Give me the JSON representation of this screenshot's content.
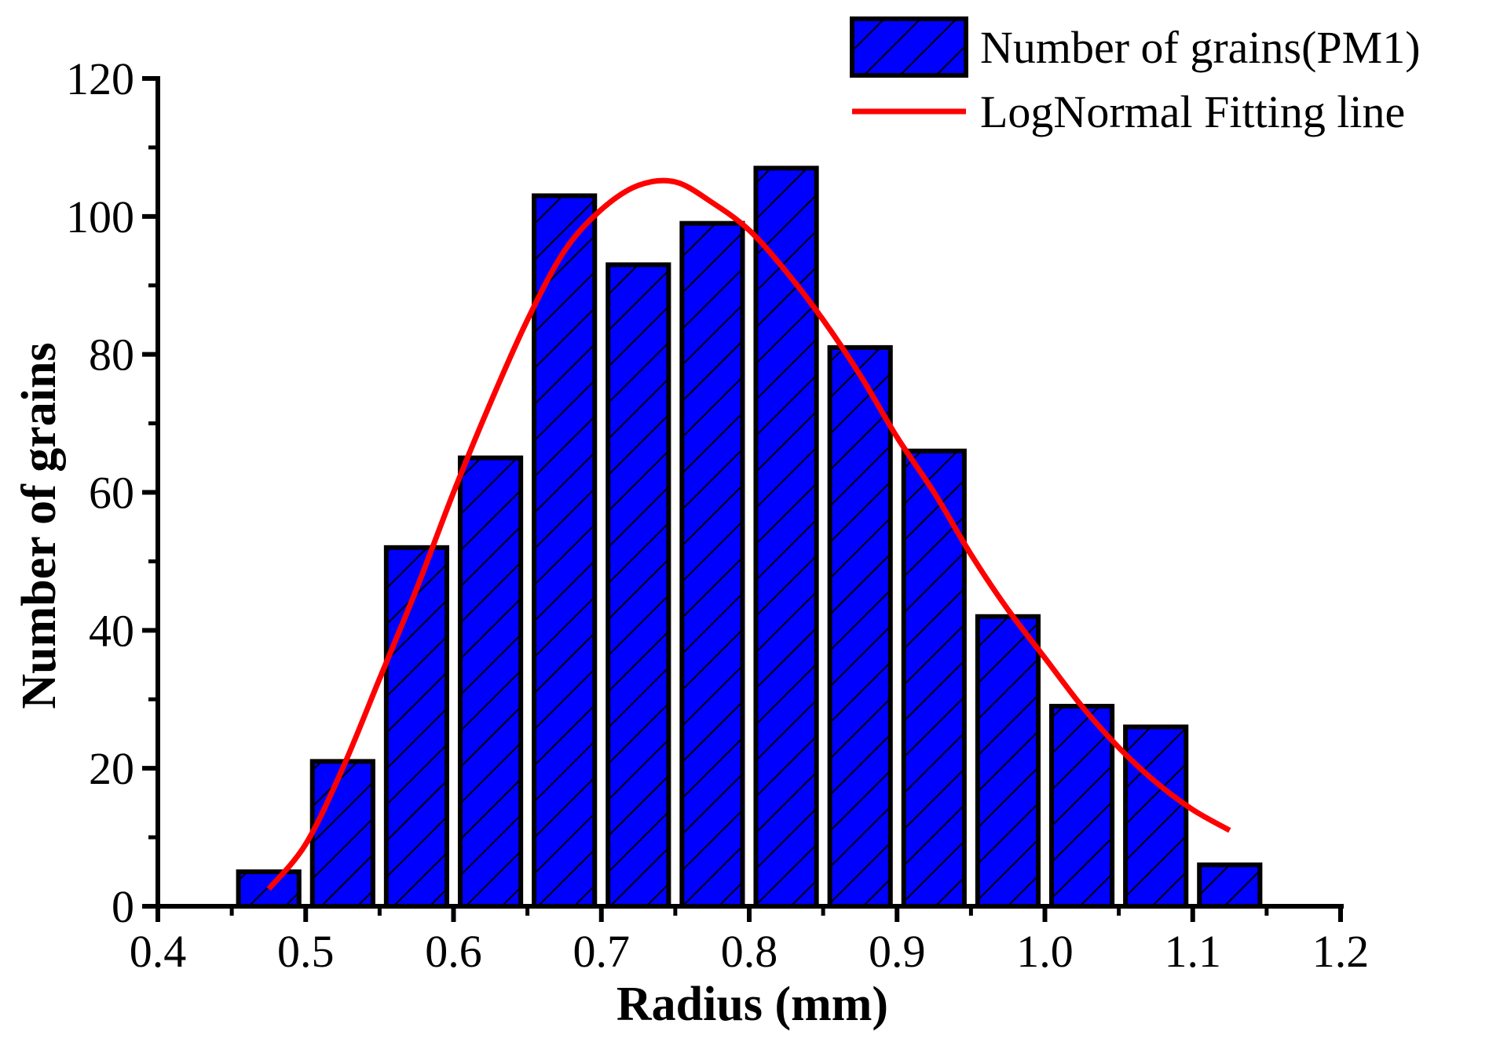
{
  "chart_data": {
    "type": "bar",
    "xlabel": "Radius (mm)",
    "ylabel": "Number of grains",
    "xlim": [
      0.4,
      1.2
    ],
    "ylim": [
      0,
      120
    ],
    "xticks": [
      "0.4",
      "0.5",
      "0.6",
      "0.7",
      "0.8",
      "0.9",
      "1.0",
      "1.1",
      "1.2"
    ],
    "yticks": [
      "0",
      "20",
      "40",
      "60",
      "80",
      "100",
      "120"
    ],
    "grid": false,
    "legend_position": "top-right",
    "series": [
      {
        "name": "Number of grains(PM1)",
        "kind": "bar",
        "color": "#0000ff",
        "pattern": "diagonal-hatch",
        "bin_width": 0.05,
        "x": [
          0.475,
          0.525,
          0.575,
          0.625,
          0.675,
          0.725,
          0.775,
          0.825,
          0.875,
          0.925,
          0.975,
          1.025,
          1.075,
          1.125
        ],
        "values": [
          5,
          21,
          52,
          65,
          103,
          93,
          99,
          107,
          81,
          66,
          42,
          29,
          26,
          6
        ]
      },
      {
        "name": "LogNormal Fitting line",
        "kind": "line",
        "color": "#ff0000",
        "x": [
          0.475,
          0.5,
          0.525,
          0.55,
          0.575,
          0.6,
          0.625,
          0.65,
          0.675,
          0.7,
          0.725,
          0.75,
          0.775,
          0.8,
          0.825,
          0.85,
          0.875,
          0.9,
          0.925,
          0.95,
          0.975,
          1.0,
          1.025,
          1.05,
          1.075,
          1.1,
          1.125
        ],
        "values": [
          2.5,
          9,
          20,
          33,
          46,
          60,
          73,
          85,
          95,
          101,
          104.5,
          105,
          102,
          98,
          92,
          85,
          77,
          68,
          60,
          51,
          43,
          36,
          29,
          23,
          18,
          14,
          11
        ]
      }
    ]
  }
}
